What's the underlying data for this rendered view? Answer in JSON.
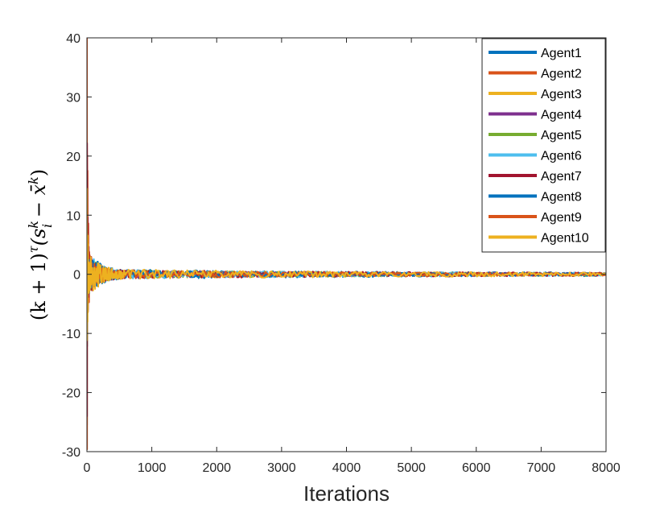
{
  "chart_data": {
    "type": "line",
    "title": "",
    "xlabel": "Iterations",
    "ylabel": "(k + 1)^τ (s_i^k − x̄^k)",
    "ylabel_parts": {
      "open": "(k + 1)",
      "tau": "τ",
      "paren": "(s",
      "k1": "k",
      "i": "i",
      "minus": " − x̄",
      "k2": "k",
      "close": ")"
    },
    "xlim": [
      0,
      8000
    ],
    "ylim": [
      -30,
      40
    ],
    "xticks": [
      0,
      1000,
      2000,
      3000,
      4000,
      5000,
      6000,
      7000,
      8000
    ],
    "xtick_labels": [
      "0",
      "1000",
      "2000",
      "3000",
      "4000",
      "5000",
      "6000",
      "7000",
      "8000"
    ],
    "yticks": [
      -30,
      -20,
      -10,
      0,
      10,
      20,
      30,
      40
    ],
    "ytick_labels": [
      "-30",
      "-20",
      "-10",
      "0",
      "10",
      "20",
      "30",
      "40"
    ],
    "grid": false,
    "legend_position": "top-right",
    "series": [
      {
        "name": "Agent1",
        "color": "#0072BD",
        "start": -25.5,
        "amp": 1.3
      },
      {
        "name": "Agent2",
        "color": "#D95319",
        "start": 40.0,
        "amp": 1.0
      },
      {
        "name": "Agent3",
        "color": "#EDB120",
        "start": -12.0,
        "amp": 1.1
      },
      {
        "name": "Agent4",
        "color": "#7E2F8E",
        "start": 6.0,
        "amp": 1.0
      },
      {
        "name": "Agent5",
        "color": "#77AC30",
        "start": -8.0,
        "amp": 1.1
      },
      {
        "name": "Agent6",
        "color": "#4DBEEE",
        "start": 11.0,
        "amp": 1.2
      },
      {
        "name": "Agent7",
        "color": "#A2142F",
        "start": -24.0,
        "amp": 1.2
      },
      {
        "name": "Agent8",
        "color": "#0072BD",
        "start": 5.0,
        "amp": 1.0
      },
      {
        "name": "Agent9",
        "color": "#D95319",
        "start": -4.0,
        "amp": 1.0
      },
      {
        "name": "Agent10",
        "color": "#EDB120",
        "start": 14.5,
        "amp": 1.3
      }
    ]
  }
}
